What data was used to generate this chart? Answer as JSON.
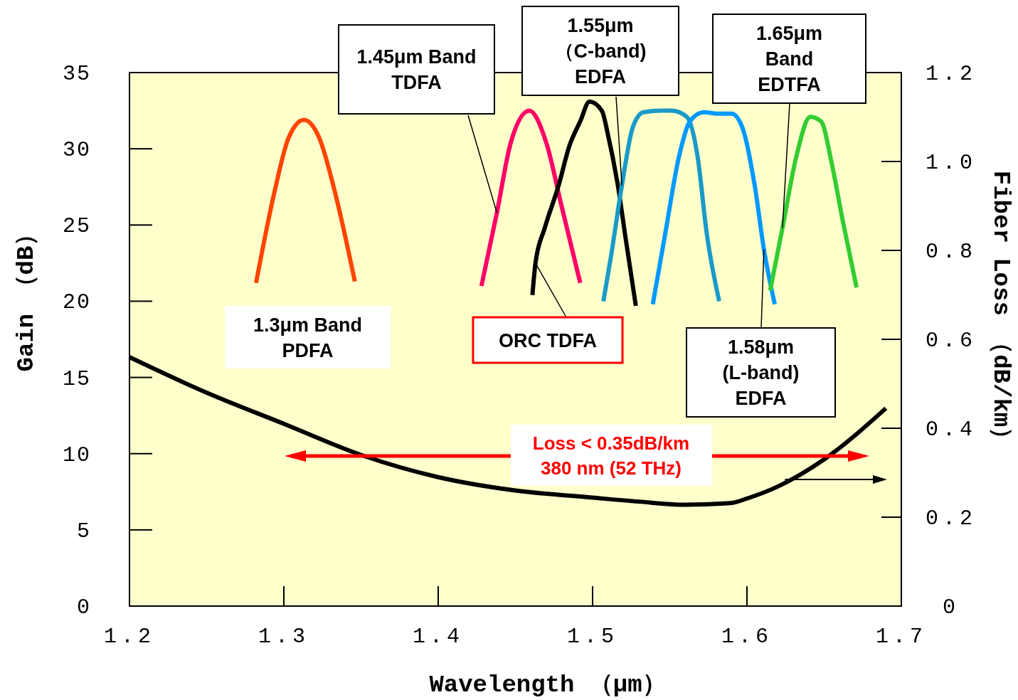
{
  "chart_data": {
    "type": "line",
    "xlabel": "Wavelength （μm）",
    "ylabel": "Gain （dB）",
    "y2label": "Fiber Loss （dB/km）",
    "xlim": [
      1.2,
      1.7
    ],
    "xticks": [
      1.2,
      1.3,
      1.4,
      1.5,
      1.6,
      1.7
    ],
    "ylim": [
      0,
      35
    ],
    "yticks": [
      0,
      5,
      10,
      15,
      20,
      25,
      30,
      35
    ],
    "y2lim": [
      0,
      1.2
    ],
    "y2ticks": [
      {
        "value": 0,
        "label": "0"
      },
      {
        "value": 0.2,
        "label": "0.2"
      },
      {
        "value": 0.4,
        "label": "0.4"
      },
      {
        "value": 0.6,
        "label": "0.6"
      },
      {
        "value": 0.8,
        "label": "0.8"
      },
      {
        "value": 1.0,
        "label": "1.0"
      },
      {
        "value": 1.2,
        "label": "1.2"
      }
    ],
    "grid": false,
    "legend": false,
    "marker": "none",
    "line_style": "solid",
    "series": [
      {
        "name": "1.3μm Band\nPDFA",
        "color": "#ff4400",
        "x": [
          1.282,
          1.294,
          1.303,
          1.313,
          1.323,
          1.333,
          1.346
        ],
        "values": [
          21.2,
          27.2,
          30.7,
          31.9,
          30.7,
          27.2,
          21.3
        ]
      },
      {
        "name": "1.45μm Band\nTDFA",
        "color": "#ff0066",
        "x": [
          1.428,
          1.438,
          1.447,
          1.459,
          1.47,
          1.48,
          1.492
        ],
        "values": [
          21.0,
          25.8,
          30.4,
          32.5,
          30.4,
          26.2,
          21.2
        ]
      },
      {
        "name": "ORC TDFA",
        "color": "#000000",
        "x": [
          1.461,
          1.463,
          1.469,
          1.478,
          1.485,
          1.492,
          1.498,
          1.506,
          1.51,
          1.517,
          1.521,
          1.528
        ],
        "values": [
          20.4,
          22.5,
          24.8,
          27.6,
          30.2,
          31.8,
          33.1,
          32.5,
          30.9,
          27.2,
          24.4,
          19.7
        ]
      },
      {
        "name": "1.55μm\n（C-band)\nEDFA",
        "color": "#1a9ac8",
        "x": [
          1.507,
          1.512,
          1.519,
          1.526,
          1.533,
          1.545,
          1.551,
          1.561,
          1.568,
          1.574,
          1.582
        ],
        "values": [
          20.0,
          23.0,
          27.6,
          31.4,
          32.4,
          32.5,
          32.5,
          32.1,
          29.5,
          24.4,
          20.0
        ]
      },
      {
        "name": "1.58μm\n(L-band)\nEDFA",
        "color": "#0099ff",
        "x": [
          1.539,
          1.547,
          1.556,
          1.563,
          1.572,
          1.581,
          1.59,
          1.597,
          1.605,
          1.611,
          1.618
        ],
        "values": [
          19.8,
          24.4,
          29.5,
          31.8,
          32.4,
          32.3,
          32.3,
          31.4,
          27.6,
          23.4,
          19.8
        ]
      },
      {
        "name": "1.65μm\nBand\nEDTFA",
        "color": "#33cc33",
        "x": [
          1.615,
          1.623,
          1.632,
          1.641,
          1.648,
          1.655,
          1.662,
          1.671
        ],
        "values": [
          20.7,
          24.8,
          29.5,
          32.1,
          31.8,
          29.0,
          25.3,
          20.9
        ]
      },
      {
        "color": "#000000",
        "axis": "y2",
        "x": [
          1.2,
          1.25,
          1.3,
          1.35,
          1.4,
          1.45,
          1.5,
          1.53,
          1.56,
          1.59,
          1.6,
          1.62,
          1.65,
          1.69
        ],
        "values": [
          0.56,
          0.48,
          0.41,
          0.34,
          0.29,
          0.26,
          0.244,
          0.235,
          0.228,
          0.232,
          0.242,
          0.269,
          0.33,
          0.445
        ]
      }
    ],
    "annotations": [
      "Loss < 0.35dB/km\n380 nm (52 THz)"
    ]
  }
}
